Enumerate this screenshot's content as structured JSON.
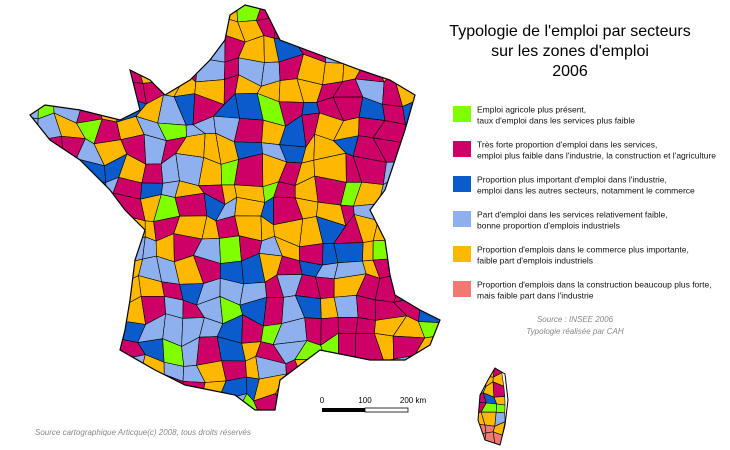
{
  "title": [
    "Typologie de l'emploi par secteurs",
    "sur les zones d'emploi",
    "2006"
  ],
  "legend": [
    {
      "color": "#80ff00",
      "lines": [
        "Emploi agricole plus présent,",
        "taux d'emploi dans les services plus faible"
      ]
    },
    {
      "color": "#cc0066",
      "lines": [
        "Très forte proportion d'emploi dans les services,",
        "emploi plus faible dans l'industrie, la construction et l'agriculture"
      ]
    },
    {
      "color": "#0a5ccc",
      "lines": [
        "Proportion plus important d'emploi dans l'industrie,",
        "emploi dans les autres secteurs, notamment le commerce"
      ]
    },
    {
      "color": "#8fb0ee",
      "lines": [
        "Part d'emploi dans les services relativement faible,",
        "bonne proportion d'emplois industriels"
      ]
    },
    {
      "color": "#ffb800",
      "lines": [
        "Proportion d'emplois dans le commerce plus importante,",
        "faible part d'emplois industriels"
      ]
    },
    {
      "color": "#f07a72",
      "lines": [
        "Proportion d'emplois dans la construction beaucoup plus forte,",
        "mais faible part dans l'industrie"
      ]
    }
  ],
  "source_note": [
    "Source : INSEE 2006",
    "Typologie réalisée par CAH"
  ],
  "scale": [
    "0",
    "100",
    "200 km"
  ],
  "credit": "Source cartographique Articque(c) 2008, tous droits réservés"
}
